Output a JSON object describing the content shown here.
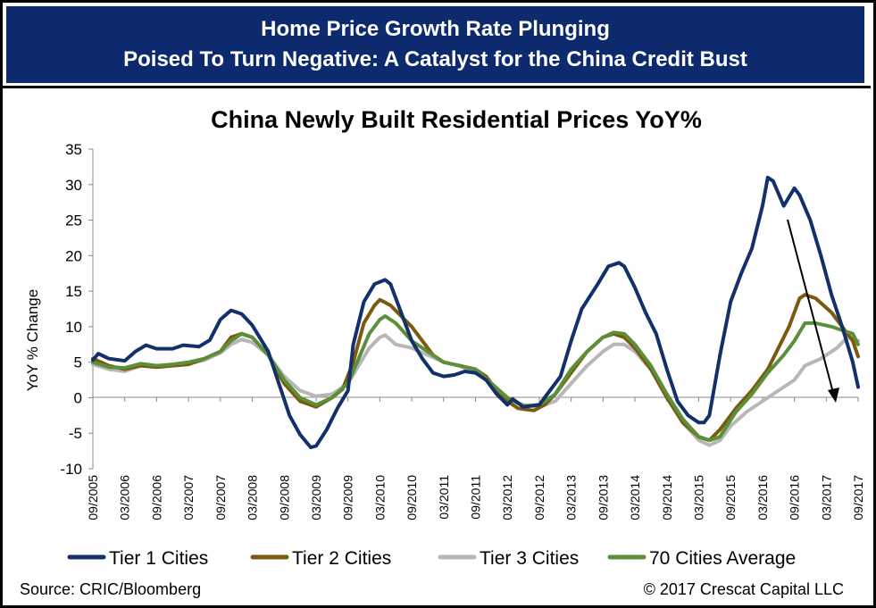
{
  "header": {
    "line1": "Home Price Growth Rate Plunging",
    "line2": "Poised To Turn Negative: A Catalyst for the China Credit Bust"
  },
  "footer": {
    "source": "Source: CRIC/Bloomberg",
    "copyright": "© 2017 Crescat Capital LLC"
  },
  "colors": {
    "header_bg": "#0d2a6e",
    "tier1": "#13306b",
    "tier2": "#7b5a10",
    "tier3": "#b7b7b7",
    "avg70": "#5b8f3a"
  },
  "chart_data": {
    "type": "line",
    "title": "China Newly Built Residential Prices YoY%",
    "ylabel": "YoY % Change",
    "xlabel": "",
    "ylim": [
      -10,
      35
    ],
    "yticks": [
      -10,
      -5,
      0,
      5,
      10,
      15,
      20,
      25,
      30,
      35
    ],
    "xlim": [
      "09/2005",
      "09/2017"
    ],
    "xticks": [
      "09/2005",
      "03/2006",
      "09/2006",
      "03/2007",
      "09/2007",
      "03/2008",
      "09/2008",
      "03/2009",
      "09/2009",
      "03/2010",
      "09/2010",
      "03/2011",
      "09/2011",
      "03/2012",
      "09/2012",
      "03/2013",
      "09/2013",
      "03/2014",
      "09/2014",
      "03/2015",
      "09/2015",
      "03/2016",
      "09/2016",
      "03/2017",
      "09/2017"
    ],
    "grid": false,
    "legend_position": "bottom",
    "series": [
      {
        "name": "Tier 1 Cities",
        "points": [
          [
            "09/2005",
            5.3
          ],
          [
            "10/2005",
            6.2
          ],
          [
            "12/2005",
            5.5
          ],
          [
            "03/2006",
            5.2
          ],
          [
            "05/2006",
            6.5
          ],
          [
            "07/2006",
            7.4
          ],
          [
            "09/2006",
            6.9
          ],
          [
            "12/2006",
            6.9
          ],
          [
            "02/2007",
            7.4
          ],
          [
            "05/2007",
            7.2
          ],
          [
            "07/2007",
            8.1
          ],
          [
            "09/2007",
            11.0
          ],
          [
            "11/2007",
            12.3
          ],
          [
            "01/2008",
            11.8
          ],
          [
            "03/2008",
            10.2
          ],
          [
            "06/2008",
            6.5
          ],
          [
            "08/2008",
            2.0
          ],
          [
            "10/2008",
            -2.5
          ],
          [
            "12/2008",
            -5.2
          ],
          [
            "02/2009",
            -7.0
          ],
          [
            "03/2009",
            -6.8
          ],
          [
            "05/2009",
            -4.5
          ],
          [
            "07/2009",
            -1.5
          ],
          [
            "09/2009",
            1.0
          ],
          [
            "10/2009",
            7.5
          ],
          [
            "12/2009",
            13.5
          ],
          [
            "02/2010",
            16.0
          ],
          [
            "04/2010",
            16.6
          ],
          [
            "05/2010",
            16.0
          ],
          [
            "07/2010",
            12.0
          ],
          [
            "09/2010",
            8.0
          ],
          [
            "11/2010",
            5.5
          ],
          [
            "01/2011",
            3.5
          ],
          [
            "03/2011",
            3.0
          ],
          [
            "05/2011",
            3.2
          ],
          [
            "07/2011",
            3.7
          ],
          [
            "09/2011",
            3.5
          ],
          [
            "11/2011",
            2.5
          ],
          [
            "01/2012",
            0.5
          ],
          [
            "03/2012",
            -1.0
          ],
          [
            "04/2012",
            -0.2
          ],
          [
            "06/2012",
            -1.3
          ],
          [
            "09/2012",
            -1.0
          ],
          [
            "11/2012",
            1.0
          ],
          [
            "01/2013",
            3.0
          ],
          [
            "03/2013",
            8.0
          ],
          [
            "05/2013",
            12.5
          ],
          [
            "08/2013",
            16.0
          ],
          [
            "10/2013",
            18.5
          ],
          [
            "12/2013",
            19.0
          ],
          [
            "01/2014",
            18.5
          ],
          [
            "03/2014",
            15.5
          ],
          [
            "05/2014",
            12.0
          ],
          [
            "07/2014",
            9.0
          ],
          [
            "09/2014",
            4.0
          ],
          [
            "11/2014",
            -0.5
          ],
          [
            "01/2015",
            -2.5
          ],
          [
            "03/2015",
            -3.5
          ],
          [
            "04/2015",
            -3.5
          ],
          [
            "05/2015",
            -2.5
          ],
          [
            "07/2015",
            6.0
          ],
          [
            "09/2015",
            13.5
          ],
          [
            "11/2015",
            17.5
          ],
          [
            "01/2016",
            21.0
          ],
          [
            "03/2016",
            27.0
          ],
          [
            "04/2016",
            31.0
          ],
          [
            "05/2016",
            30.5
          ],
          [
            "07/2016",
            27.0
          ],
          [
            "09/2016",
            29.5
          ],
          [
            "10/2016",
            28.5
          ],
          [
            "12/2016",
            25.0
          ],
          [
            "02/2017",
            20.0
          ],
          [
            "04/2017",
            14.5
          ],
          [
            "06/2017",
            10.0
          ],
          [
            "08/2017",
            5.0
          ],
          [
            "09/2017",
            1.5
          ]
        ]
      },
      {
        "name": "Tier 2 Cities",
        "points": [
          [
            "09/2005",
            5.5
          ],
          [
            "12/2005",
            4.5
          ],
          [
            "03/2006",
            4.0
          ],
          [
            "06/2006",
            4.5
          ],
          [
            "09/2006",
            4.3
          ],
          [
            "12/2006",
            4.5
          ],
          [
            "03/2007",
            4.7
          ],
          [
            "06/2007",
            5.5
          ],
          [
            "09/2007",
            6.5
          ],
          [
            "11/2007",
            8.5
          ],
          [
            "01/2008",
            9.0
          ],
          [
            "03/2008",
            8.5
          ],
          [
            "06/2008",
            6.0
          ],
          [
            "09/2008",
            2.0
          ],
          [
            "12/2008",
            -0.5
          ],
          [
            "03/2009",
            -1.3
          ],
          [
            "06/2009",
            0.0
          ],
          [
            "08/2009",
            1.2
          ],
          [
            "10/2009",
            5.0
          ],
          [
            "12/2009",
            10.5
          ],
          [
            "02/2010",
            13.0
          ],
          [
            "03/2010",
            13.8
          ],
          [
            "05/2010",
            13.0
          ],
          [
            "07/2010",
            11.5
          ],
          [
            "09/2010",
            10.0
          ],
          [
            "11/2010",
            8.0
          ],
          [
            "01/2011",
            6.0
          ],
          [
            "03/2011",
            5.0
          ],
          [
            "06/2011",
            4.5
          ],
          [
            "09/2011",
            4.0
          ],
          [
            "11/2011",
            3.0
          ],
          [
            "01/2012",
            1.0
          ],
          [
            "03/2012",
            -0.5
          ],
          [
            "05/2012",
            -1.5
          ],
          [
            "08/2012",
            -1.8
          ],
          [
            "10/2012",
            -1.0
          ],
          [
            "12/2012",
            0.5
          ],
          [
            "03/2013",
            3.5
          ],
          [
            "06/2013",
            6.5
          ],
          [
            "09/2013",
            8.5
          ],
          [
            "11/2013",
            9.0
          ],
          [
            "01/2014",
            8.5
          ],
          [
            "03/2014",
            7.0
          ],
          [
            "06/2014",
            4.0
          ],
          [
            "09/2014",
            0.0
          ],
          [
            "12/2014",
            -3.5
          ],
          [
            "03/2015",
            -5.5
          ],
          [
            "05/2015",
            -6.0
          ],
          [
            "07/2015",
            -4.5
          ],
          [
            "10/2015",
            -1.5
          ],
          [
            "01/2016",
            1.0
          ],
          [
            "04/2016",
            4.0
          ],
          [
            "06/2016",
            7.0
          ],
          [
            "08/2016",
            10.0
          ],
          [
            "10/2016",
            14.0
          ],
          [
            "11/2016",
            14.5
          ],
          [
            "01/2017",
            14.0
          ],
          [
            "04/2017",
            12.0
          ],
          [
            "06/2017",
            10.0
          ],
          [
            "08/2017",
            8.0
          ],
          [
            "09/2017",
            5.8
          ]
        ]
      },
      {
        "name": "Tier 3 Cities",
        "points": [
          [
            "09/2005",
            4.7
          ],
          [
            "12/2005",
            4.0
          ],
          [
            "03/2006",
            3.7
          ],
          [
            "06/2006",
            4.5
          ],
          [
            "09/2006",
            4.5
          ],
          [
            "12/2006",
            4.5
          ],
          [
            "03/2007",
            4.8
          ],
          [
            "06/2007",
            5.3
          ],
          [
            "09/2007",
            6.3
          ],
          [
            "11/2007",
            7.5
          ],
          [
            "01/2008",
            8.2
          ],
          [
            "03/2008",
            7.8
          ],
          [
            "06/2008",
            6.0
          ],
          [
            "09/2008",
            3.0
          ],
          [
            "12/2008",
            1.0
          ],
          [
            "03/2009",
            0.2
          ],
          [
            "06/2009",
            0.5
          ],
          [
            "09/2009",
            2.0
          ],
          [
            "11/2009",
            4.5
          ],
          [
            "01/2010",
            7.0
          ],
          [
            "03/2010",
            8.5
          ],
          [
            "04/2010",
            8.8
          ],
          [
            "06/2010",
            7.5
          ],
          [
            "09/2010",
            7.0
          ],
          [
            "12/2010",
            6.0
          ],
          [
            "03/2011",
            5.0
          ],
          [
            "06/2011",
            4.5
          ],
          [
            "09/2011",
            3.5
          ],
          [
            "12/2011",
            2.0
          ],
          [
            "03/2012",
            0.0
          ],
          [
            "06/2012",
            -1.0
          ],
          [
            "09/2012",
            -1.3
          ],
          [
            "12/2012",
            -0.5
          ],
          [
            "03/2013",
            2.0
          ],
          [
            "06/2013",
            4.5
          ],
          [
            "09/2013",
            6.5
          ],
          [
            "11/2013",
            7.5
          ],
          [
            "01/2014",
            7.5
          ],
          [
            "03/2014",
            6.5
          ],
          [
            "06/2014",
            4.0
          ],
          [
            "09/2014",
            0.5
          ],
          [
            "12/2014",
            -3.5
          ],
          [
            "03/2015",
            -6.0
          ],
          [
            "05/2015",
            -6.7
          ],
          [
            "07/2015",
            -6.0
          ],
          [
            "09/2015",
            -4.0
          ],
          [
            "12/2015",
            -2.0
          ],
          [
            "03/2016",
            -0.5
          ],
          [
            "06/2016",
            1.0
          ],
          [
            "09/2016",
            2.5
          ],
          [
            "11/2016",
            4.5
          ],
          [
            "02/2017",
            5.5
          ],
          [
            "05/2017",
            7.0
          ],
          [
            "07/2017",
            8.5
          ],
          [
            "09/2017",
            8.0
          ]
        ]
      },
      {
        "name": "70 Cities Average",
        "points": [
          [
            "09/2005",
            5.0
          ],
          [
            "12/2005",
            4.3
          ],
          [
            "03/2006",
            4.2
          ],
          [
            "06/2006",
            4.8
          ],
          [
            "09/2006",
            4.5
          ],
          [
            "12/2006",
            4.7
          ],
          [
            "03/2007",
            5.0
          ],
          [
            "06/2007",
            5.5
          ],
          [
            "09/2007",
            6.5
          ],
          [
            "11/2007",
            8.0
          ],
          [
            "01/2008",
            9.0
          ],
          [
            "03/2008",
            8.5
          ],
          [
            "06/2008",
            6.0
          ],
          [
            "09/2008",
            2.5
          ],
          [
            "12/2008",
            0.0
          ],
          [
            "03/2009",
            -1.0
          ],
          [
            "06/2009",
            0.0
          ],
          [
            "09/2009",
            2.0
          ],
          [
            "11/2009",
            5.5
          ],
          [
            "01/2010",
            9.0
          ],
          [
            "03/2010",
            11.0
          ],
          [
            "04/2010",
            11.5
          ],
          [
            "06/2010",
            10.5
          ],
          [
            "09/2010",
            8.0
          ],
          [
            "12/2010",
            6.5
          ],
          [
            "03/2011",
            5.0
          ],
          [
            "06/2011",
            4.5
          ],
          [
            "09/2011",
            4.0
          ],
          [
            "12/2011",
            2.0
          ],
          [
            "03/2012",
            0.0
          ],
          [
            "06/2012",
            -1.2
          ],
          [
            "09/2012",
            -1.0
          ],
          [
            "12/2012",
            0.5
          ],
          [
            "03/2013",
            4.0
          ],
          [
            "06/2013",
            6.5
          ],
          [
            "09/2013",
            8.5
          ],
          [
            "11/2013",
            9.2
          ],
          [
            "01/2014",
            9.0
          ],
          [
            "03/2014",
            7.5
          ],
          [
            "06/2014",
            4.5
          ],
          [
            "09/2014",
            0.5
          ],
          [
            "12/2014",
            -3.0
          ],
          [
            "03/2015",
            -5.5
          ],
          [
            "05/2015",
            -6.0
          ],
          [
            "07/2015",
            -5.5
          ],
          [
            "10/2015",
            -2.0
          ],
          [
            "01/2016",
            0.5
          ],
          [
            "04/2016",
            3.5
          ],
          [
            "07/2016",
            6.0
          ],
          [
            "09/2016",
            8.0
          ],
          [
            "11/2016",
            10.5
          ],
          [
            "01/2017",
            10.5
          ],
          [
            "04/2017",
            10.0
          ],
          [
            "06/2017",
            9.5
          ],
          [
            "08/2017",
            9.0
          ],
          [
            "09/2017",
            7.5
          ]
        ]
      }
    ]
  }
}
